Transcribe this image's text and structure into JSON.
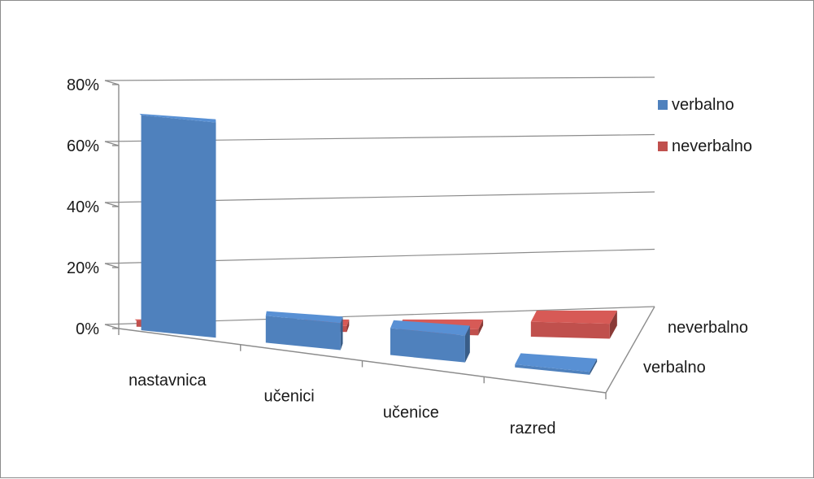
{
  "chart_data": {
    "type": "bar",
    "subtype": "3d-column",
    "categories": [
      "nastavnica",
      "učenici",
      "učenice",
      "razred"
    ],
    "series": [
      {
        "name": "verbalno",
        "values": [
          72,
          9,
          9,
          1
        ],
        "color": "#4f81bd"
      },
      {
        "name": "neverbalno",
        "values": [
          2,
          2,
          2,
          5
        ],
        "color": "#c0504d"
      }
    ],
    "ylim": [
      0,
      80
    ],
    "yticks": [
      "0%",
      "20%",
      "40%",
      "60%",
      "80%"
    ],
    "depth_labels": [
      "neverbalno",
      "verbalno"
    ],
    "grid": true,
    "legend": "right"
  }
}
